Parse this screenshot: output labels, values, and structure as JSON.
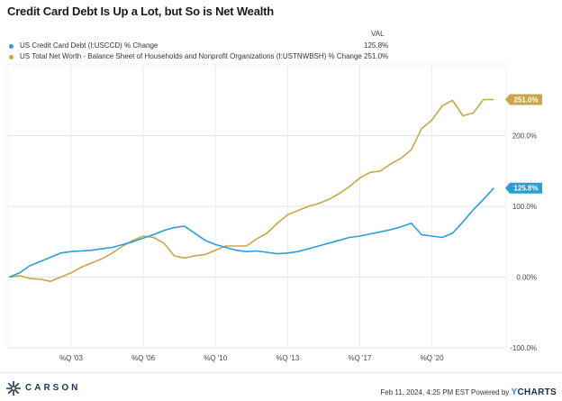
{
  "title": "Credit Card Debt Is Up a Lot, but So is Net Wealth",
  "legend": {
    "header": "VAL",
    "items": [
      {
        "name": "US Credit Card Debt (I:USCCD) % Change",
        "value": "125.8%",
        "color": "#2a9fd6"
      },
      {
        "name": "US Total Net Worth - Balance Sheet of Households and Nonprofit Organizations (I:USTNWBSH) % Change",
        "value": "251.0%",
        "color": "#c9a648"
      }
    ]
  },
  "chart_data": {
    "type": "line",
    "x_tick_labels": [
      "%Q '03",
      "%Q '06",
      "%Q '10",
      "%Q '13",
      "%Q '17",
      "%Q '20"
    ],
    "x_ticks": [
      2003,
      2006.5,
      2010,
      2013.5,
      2017,
      2020.5
    ],
    "xlim": [
      1999.9,
      2024.1
    ],
    "ylim": [
      -100,
      300
    ],
    "y_ticks": [
      -100,
      0,
      100,
      200
    ],
    "y_tick_labels": [
      "-100.0%",
      "0.00%",
      "100.0%",
      "200.0%"
    ],
    "grid": true,
    "series": [
      {
        "name": "US Credit Card Debt (I:USCCD) % Change",
        "color": "#2a9fd6",
        "end_label": "125.8%",
        "x": [
          2000.0,
          2000.5,
          2001.0,
          2001.5,
          2002.0,
          2002.5,
          2003.0,
          2003.5,
          2004.0,
          2004.5,
          2005.0,
          2005.5,
          2006.0,
          2006.5,
          2007.0,
          2007.5,
          2008.0,
          2008.5,
          2009.0,
          2009.5,
          2010.0,
          2010.5,
          2011.0,
          2011.5,
          2012.0,
          2012.5,
          2013.0,
          2013.5,
          2014.0,
          2014.5,
          2015.0,
          2015.5,
          2016.0,
          2016.5,
          2017.0,
          2017.5,
          2018.0,
          2018.5,
          2019.0,
          2019.5,
          2020.0,
          2020.5,
          2021.0,
          2021.5,
          2022.0,
          2022.5,
          2023.0,
          2023.5
        ],
        "y": [
          0,
          6,
          16,
          22,
          28,
          34,
          36,
          37,
          38,
          40,
          42,
          46,
          50,
          55,
          60,
          66,
          70,
          72,
          62,
          52,
          46,
          42,
          38,
          36,
          37,
          35,
          33,
          34,
          36,
          40,
          44,
          48,
          52,
          56,
          58,
          61,
          64,
          67,
          71,
          76,
          60,
          58,
          56,
          62,
          78,
          95,
          110,
          125.8
        ]
      },
      {
        "name": "US Total Net Worth - Balance Sheet of Households and Nonprofit Organizations (I:USTNWBSH) % Change",
        "color": "#c9a648",
        "end_label": "251.0%",
        "x": [
          2000.0,
          2000.5,
          2001.0,
          2001.5,
          2002.0,
          2002.5,
          2003.0,
          2003.5,
          2004.0,
          2004.5,
          2005.0,
          2005.5,
          2006.0,
          2006.5,
          2007.0,
          2007.5,
          2008.0,
          2008.5,
          2009.0,
          2009.5,
          2010.0,
          2010.5,
          2011.0,
          2011.5,
          2012.0,
          2012.5,
          2013.0,
          2013.5,
          2014.0,
          2014.5,
          2015.0,
          2015.5,
          2016.0,
          2016.5,
          2017.0,
          2017.5,
          2018.0,
          2018.5,
          2019.0,
          2019.5,
          2020.0,
          2020.5,
          2021.0,
          2021.5,
          2022.0,
          2022.5,
          2023.0,
          2023.5
        ],
        "y": [
          0,
          2,
          -2,
          -3,
          -6,
          0,
          6,
          14,
          20,
          26,
          34,
          44,
          52,
          58,
          56,
          48,
          30,
          27,
          30,
          32,
          38,
          44,
          44,
          44,
          54,
          62,
          76,
          88,
          94,
          100,
          104,
          110,
          118,
          128,
          140,
          148,
          150,
          160,
          168,
          180,
          210,
          222,
          242,
          250,
          228,
          232,
          251,
          251.0
        ]
      }
    ]
  },
  "footer": {
    "brand": "CARSON",
    "date_text": "Feb 11, 2024, 4:25 PM EST Powered by",
    "ycharts_y": "Y",
    "ycharts_rest": "CHARTS"
  }
}
